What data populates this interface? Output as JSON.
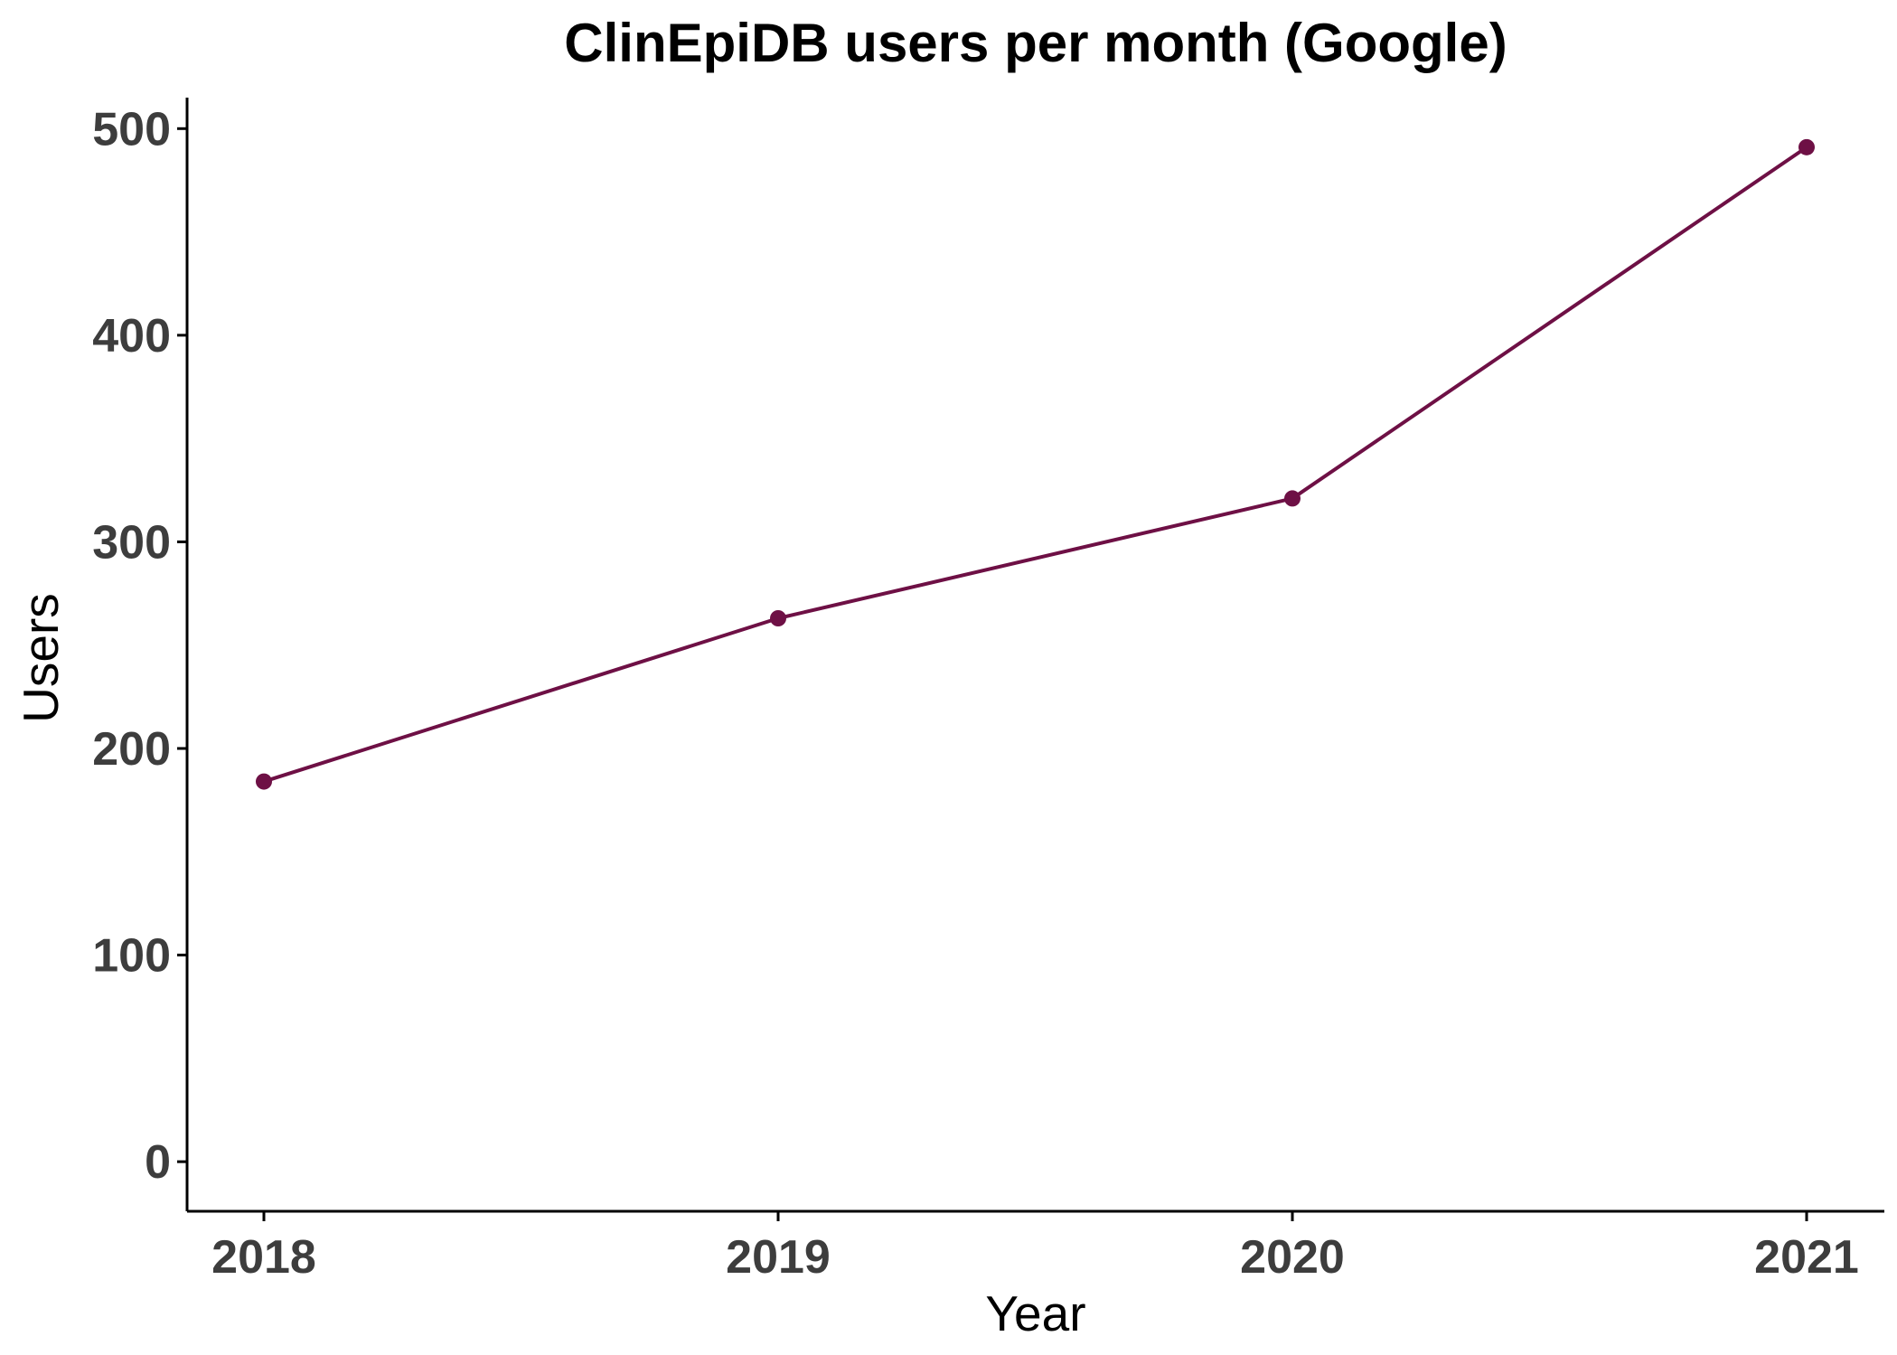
{
  "chart_data": {
    "type": "line",
    "title": "ClinEpiDB users per month (Google)",
    "xlabel": "Year",
    "ylabel": "Users",
    "x": [
      "2018",
      "2019",
      "2020",
      "2021"
    ],
    "series": [
      {
        "values": [
          184,
          263,
          321,
          491
        ]
      }
    ],
    "ylim": [
      -24,
      515
    ],
    "yticks": [
      0,
      100,
      200,
      300,
      400,
      500
    ],
    "grid": false,
    "legend": "none",
    "colors": {
      "series": "#6e1045",
      "axis": "#000000",
      "tick_text": "#3d3d3d"
    }
  }
}
